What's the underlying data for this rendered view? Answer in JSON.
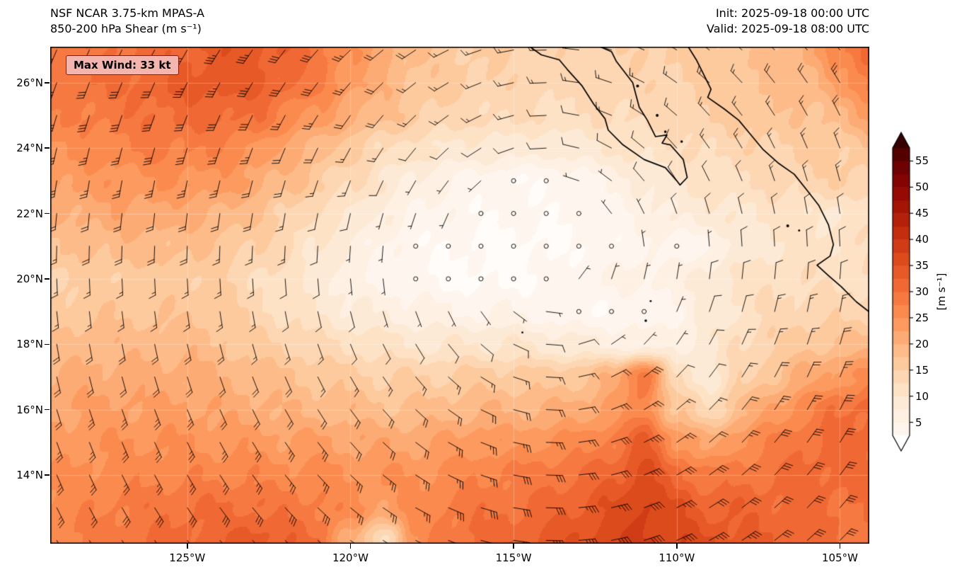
{
  "header": {
    "title_line1": "NSF NCAR 3.75-km MPAS-A",
    "title_line2": "850-200 hPa Shear (m s⁻¹)",
    "init_label": "Init: 2025-09-18 00:00 UTC",
    "valid_label": "Valid: 2025-09-18 08:00 UTC"
  },
  "map": {
    "max_wind_badge": "Max Wind: 33 kt",
    "badge_bg": "#f3b5ad",
    "badge_border": "#8c1a10"
  },
  "chart_data": {
    "type": "heatmap",
    "title": "850-200 hPa Shear (m s⁻¹)",
    "lon_min": -129.2,
    "lon_max": -104.1,
    "lat_min": 11.9,
    "lat_max": 27.1,
    "x_ticks": [
      {
        "lon": -125,
        "label": "125°W"
      },
      {
        "lon": -120,
        "label": "120°W"
      },
      {
        "lon": -115,
        "label": "115°W"
      },
      {
        "lon": -110,
        "label": "110°W"
      },
      {
        "lon": -105,
        "label": "105°W"
      }
    ],
    "y_ticks": [
      {
        "lat": 26,
        "label": "26°N"
      },
      {
        "lat": 24,
        "label": "24°N"
      },
      {
        "lat": 22,
        "label": "22°N"
      },
      {
        "lat": 20,
        "label": "20°N"
      },
      {
        "lat": 18,
        "label": "18°N"
      },
      {
        "lat": 16,
        "label": "16°N"
      },
      {
        "lat": 14,
        "label": "14°N"
      }
    ],
    "colorbar": {
      "label": "[m s⁻¹]",
      "ticks": [
        5,
        10,
        15,
        20,
        25,
        30,
        35,
        40,
        45,
        50,
        55
      ],
      "vmin": 2.5,
      "vmax": 57.5,
      "stops": [
        [
          0,
          "#ffffff"
        ],
        [
          5,
          "#fef3e8"
        ],
        [
          10,
          "#fde7d0"
        ],
        [
          15,
          "#fdd2a9"
        ],
        [
          20,
          "#fdb37e"
        ],
        [
          25,
          "#fc9254"
        ],
        [
          30,
          "#f4713a"
        ],
        [
          35,
          "#e25220"
        ],
        [
          40,
          "#ca3411"
        ],
        [
          45,
          "#ad1a07"
        ],
        [
          50,
          "#8e0503"
        ],
        [
          55,
          "#630000"
        ],
        [
          60,
          "#2b0000"
        ]
      ]
    },
    "grid": {
      "units": "m s-1",
      "lon0": -129,
      "dlon": 1,
      "nlon": 26,
      "lat0": 27,
      "dlat": -1,
      "nlat": 16,
      "values": [
        [
          29,
          29,
          30,
          31,
          32,
          34,
          34,
          32,
          29,
          25,
          21,
          18,
          16,
          15,
          15,
          14,
          14,
          14,
          15,
          16,
          16,
          17,
          18,
          21,
          27,
          33
        ],
        [
          29,
          30,
          30,
          32,
          33,
          34,
          33,
          31,
          28,
          24,
          20,
          17,
          16,
          15,
          14,
          14,
          13,
          14,
          14,
          15,
          16,
          17,
          18,
          19,
          23,
          29
        ],
        [
          27,
          28,
          29,
          30,
          31,
          31,
          30,
          27,
          24,
          21,
          18,
          16,
          14,
          13,
          13,
          12,
          12,
          13,
          13,
          14,
          15,
          16,
          17,
          17,
          19,
          23
        ],
        [
          25,
          26,
          27,
          28,
          28,
          27,
          25,
          22,
          19,
          16,
          13,
          11,
          10,
          9,
          9,
          8,
          9,
          10,
          11,
          12,
          13,
          14,
          15,
          16,
          16,
          17
        ],
        [
          23,
          24,
          24,
          25,
          25,
          24,
          22,
          19,
          16,
          13,
          10,
          7,
          5,
          4,
          3,
          3,
          4,
          6,
          8,
          10,
          11,
          12,
          13,
          14,
          15,
          15
        ],
        [
          20,
          21,
          22,
          22,
          21,
          20,
          18,
          15,
          12,
          10,
          7,
          5,
          4,
          3,
          3,
          3,
          3,
          4,
          6,
          8,
          9,
          10,
          11,
          11,
          9,
          12
        ],
        [
          17,
          18,
          19,
          19,
          18,
          17,
          15,
          13,
          10,
          7,
          5,
          3,
          3,
          2,
          2,
          2,
          3,
          3,
          5,
          3,
          5,
          8,
          10,
          11,
          11,
          12
        ],
        [
          15,
          15,
          16,
          16,
          16,
          15,
          13,
          11,
          9,
          6,
          4,
          3,
          2,
          2,
          2,
          3,
          4,
          5,
          6,
          6,
          9,
          11,
          12,
          12,
          12,
          12
        ],
        [
          16,
          17,
          17,
          17,
          17,
          16,
          14,
          12,
          10,
          8,
          7,
          6,
          5,
          5,
          5,
          4,
          3,
          3,
          3,
          5,
          8,
          11,
          13,
          14,
          14,
          14
        ],
        [
          18,
          19,
          19,
          19,
          19,
          18,
          16,
          15,
          13,
          12,
          11,
          10,
          10,
          10,
          10,
          9,
          8,
          7,
          6,
          7,
          9,
          13,
          15,
          17,
          18,
          19
        ],
        [
          20,
          21,
          21,
          21,
          21,
          20,
          19,
          18,
          17,
          16,
          15,
          15,
          15,
          16,
          16,
          16,
          17,
          20,
          30,
          12,
          9,
          14,
          18,
          21,
          24,
          26
        ],
        [
          22,
          23,
          23,
          23,
          23,
          22,
          21,
          20,
          19,
          19,
          18,
          18,
          19,
          20,
          20,
          20,
          21,
          23,
          27,
          17,
          13,
          19,
          23,
          27,
          30,
          31
        ],
        [
          24,
          24,
          25,
          25,
          25,
          24,
          24,
          23,
          23,
          22,
          22,
          22,
          23,
          24,
          24,
          25,
          26,
          28,
          33,
          25,
          21,
          25,
          28,
          30,
          31,
          31
        ],
        [
          25,
          26,
          26,
          27,
          27,
          27,
          27,
          26,
          26,
          25,
          25,
          25,
          26,
          27,
          28,
          29,
          30,
          32,
          36,
          31,
          28,
          29,
          30,
          31,
          31,
          30
        ],
        [
          26,
          27,
          28,
          29,
          30,
          30,
          30,
          29,
          28,
          26,
          23,
          26,
          28,
          29,
          30,
          31,
          33,
          35,
          38,
          35,
          32,
          32,
          31,
          31,
          30,
          30
        ],
        [
          27,
          28,
          29,
          30,
          31,
          32,
          34,
          32,
          30,
          20,
          12,
          25,
          29,
          31,
          32,
          33,
          35,
          37,
          38,
          37,
          35,
          33,
          32,
          31,
          30,
          29
        ]
      ]
    },
    "barbs": {
      "center_lon": -113.8,
      "center_lat": 20.6,
      "calm_threshold": 3.4,
      "full_barb": 10,
      "half_barb": 5,
      "staff_len": 23
    },
    "coastlines": [
      [
        [
          -114.5,
          27.1
        ],
        [
          -114.15,
          26.85
        ],
        [
          -113.6,
          26.7
        ],
        [
          -113.35,
          26.4
        ],
        [
          -112.9,
          25.9
        ],
        [
          -112.55,
          25.35
        ],
        [
          -112.2,
          24.9
        ],
        [
          -112.1,
          24.55
        ],
        [
          -111.65,
          24.1
        ],
        [
          -111.0,
          23.65
        ],
        [
          -110.35,
          23.4
        ],
        [
          -110.0,
          23.0
        ],
        [
          -109.9,
          22.87
        ],
        [
          -109.68,
          23.1
        ],
        [
          -109.8,
          23.65
        ],
        [
          -110.2,
          24.1
        ],
        [
          -110.45,
          24.15
        ],
        [
          -110.3,
          24.4
        ],
        [
          -110.65,
          24.35
        ],
        [
          -110.9,
          24.85
        ],
        [
          -111.15,
          25.25
        ],
        [
          -111.35,
          26.0
        ],
        [
          -111.85,
          26.65
        ],
        [
          -112.0,
          26.95
        ],
        [
          -112.35,
          27.1
        ]
      ],
      [
        [
          -109.65,
          27.1
        ],
        [
          -109.4,
          26.7
        ],
        [
          -109.2,
          26.3
        ],
        [
          -108.95,
          25.8
        ],
        [
          -109.05,
          25.55
        ],
        [
          -108.55,
          25.2
        ],
        [
          -108.1,
          24.85
        ],
        [
          -107.85,
          24.55
        ],
        [
          -107.35,
          23.95
        ],
        [
          -106.9,
          23.55
        ],
        [
          -106.4,
          23.2
        ],
        [
          -106.0,
          22.7
        ],
        [
          -105.65,
          22.25
        ],
        [
          -105.35,
          21.65
        ],
        [
          -105.2,
          21.05
        ],
        [
          -105.3,
          20.7
        ],
        [
          -105.7,
          20.42
        ],
        [
          -105.35,
          20.1
        ],
        [
          -104.95,
          19.75
        ],
        [
          -104.5,
          19.3
        ],
        [
          -104.05,
          18.95
        ]
      ]
    ],
    "islands": [
      [
        -111.2,
        25.9,
        2
      ],
      [
        -110.6,
        25.0,
        2
      ],
      [
        -110.35,
        24.5,
        1.8
      ],
      [
        -109.85,
        24.2,
        1.8
      ],
      [
        -106.6,
        21.62,
        2
      ],
      [
        -106.25,
        21.48,
        1.5
      ],
      [
        -110.95,
        18.72,
        1.8
      ],
      [
        -110.8,
        19.32,
        1.4
      ],
      [
        -114.73,
        18.36,
        1.4
      ]
    ],
    "grid_on": true,
    "legend_position": "right-colorbar"
  }
}
